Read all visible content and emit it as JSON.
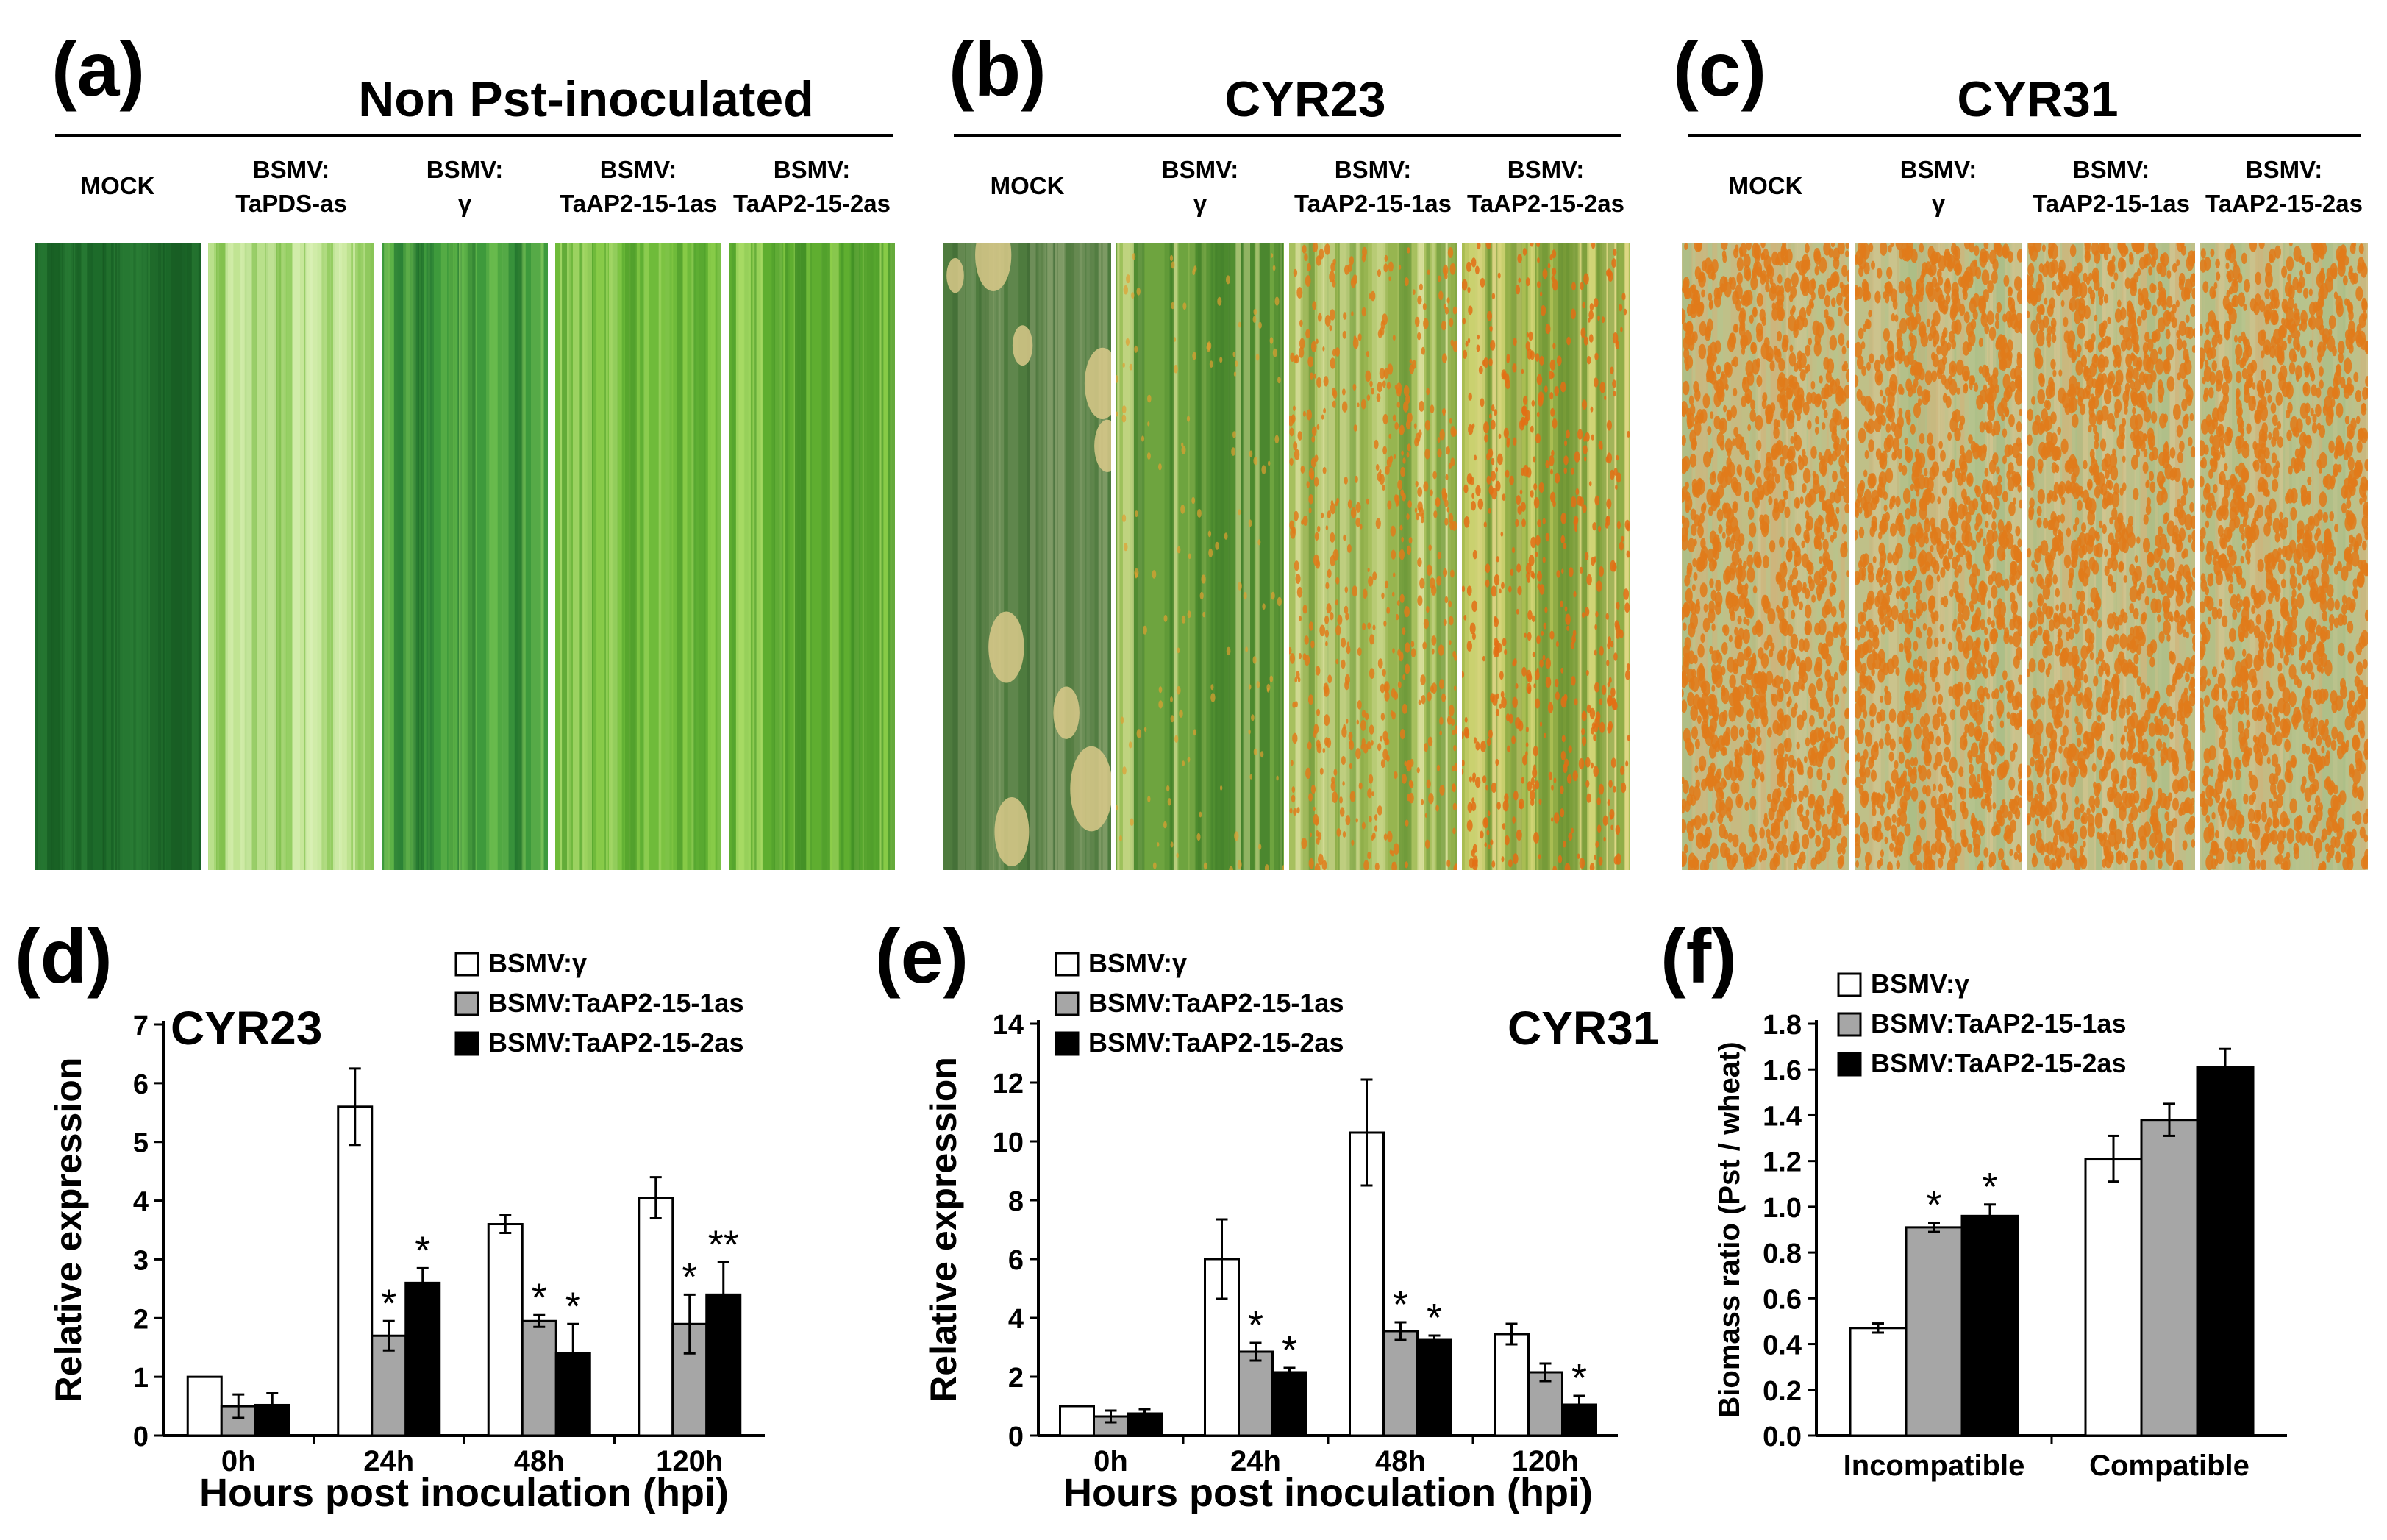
{
  "panels_top": [
    {
      "letter": "(a)",
      "title": "Non Pst-inoculated",
      "leaves": [
        {
          "label": [
            "MOCK"
          ],
          "style": "mock_a"
        },
        {
          "label": [
            "BSMV:",
            "TaPDS-as"
          ],
          "style": "pds"
        },
        {
          "label": [
            "BSMV:",
            "γ"
          ],
          "style": "gamma_a"
        },
        {
          "label": [
            "BSMV:",
            "TaAP2-15-1as"
          ],
          "style": "kd1_a"
        },
        {
          "label": [
            "BSMV:",
            "TaAP2-15-2as"
          ],
          "style": "kd2_a"
        }
      ]
    },
    {
      "letter": "(b)",
      "title": "CYR23",
      "leaves": [
        {
          "label": [
            "MOCK"
          ],
          "style": "mock_b"
        },
        {
          "label": [
            "BSMV:",
            "γ"
          ],
          "style": "gamma_b"
        },
        {
          "label": [
            "BSMV:",
            "TaAP2-15-1as"
          ],
          "style": "kd1_b"
        },
        {
          "label": [
            "BSMV:",
            "TaAP2-15-2as"
          ],
          "style": "kd2_b"
        }
      ]
    },
    {
      "letter": "(c)",
      "title": "CYR31",
      "leaves": [
        {
          "label": [
            "MOCK"
          ],
          "style": "rust"
        },
        {
          "label": [
            "BSMV:",
            "γ"
          ],
          "style": "rust"
        },
        {
          "label": [
            "BSMV:",
            "TaAP2-15-1as"
          ],
          "style": "rust"
        },
        {
          "label": [
            "BSMV:",
            "TaAP2-15-2as"
          ],
          "style": "rust"
        }
      ]
    }
  ],
  "colors": {
    "series": [
      "#ffffff",
      "#a6a6a6",
      "#000000"
    ],
    "stroke": "#000000",
    "leaf_dark": "#1f6e2a",
    "leaf_light": "#9fd468",
    "rust_orange": "#e07b1a"
  },
  "chart_data": [
    {
      "panel": "(d)",
      "type": "bar",
      "inset_title": "CYR23",
      "categories": [
        "0h",
        "24h",
        "48h",
        "120h"
      ],
      "series": [
        {
          "name": "BSMV:γ",
          "values": [
            1.0,
            5.6,
            3.6,
            4.05
          ],
          "errors": [
            0,
            0.65,
            0.15,
            0.35
          ]
        },
        {
          "name": "BSMV:TaAP2-15-1as",
          "values": [
            0.5,
            1.7,
            1.95,
            1.9
          ],
          "errors": [
            0.2,
            0.25,
            0.1,
            0.5
          ]
        },
        {
          "name": "BSMV:TaAP2-15-2as",
          "values": [
            0.52,
            2.6,
            1.4,
            2.4
          ],
          "errors": [
            0.2,
            0.25,
            0.5,
            0.55
          ]
        }
      ],
      "significance": [
        {
          "category": 1,
          "series": 1,
          "text": "*"
        },
        {
          "category": 1,
          "series": 2,
          "text": "*"
        },
        {
          "category": 2,
          "series": 1,
          "text": "*"
        },
        {
          "category": 2,
          "series": 2,
          "text": "*"
        },
        {
          "category": 3,
          "series": 1,
          "text": "*"
        },
        {
          "category": 3,
          "series": 2,
          "text": "**"
        }
      ],
      "ylabel": "Relative expression",
      "xlabel": "Hours post inoculation (hpi)",
      "ylim": [
        0,
        7
      ],
      "yticks": [
        0,
        1,
        2,
        3,
        4,
        5,
        6,
        7
      ],
      "legend_position": "top-right"
    },
    {
      "panel": "(e)",
      "type": "bar",
      "inset_title": "CYR31",
      "categories": [
        "0h",
        "24h",
        "48h",
        "120h"
      ],
      "series": [
        {
          "name": "BSMV:γ",
          "values": [
            1.0,
            6.0,
            10.3,
            3.45
          ],
          "errors": [
            0,
            1.35,
            1.8,
            0.35
          ]
        },
        {
          "name": "BSMV:TaAP2-15-1as",
          "values": [
            0.65,
            2.85,
            3.55,
            2.15
          ],
          "errors": [
            0.2,
            0.3,
            0.3,
            0.3
          ]
        },
        {
          "name": "BSMV:TaAP2-15-2as",
          "values": [
            0.75,
            2.15,
            3.25,
            1.05
          ],
          "errors": [
            0.15,
            0.15,
            0.15,
            0.3
          ]
        }
      ],
      "significance": [
        {
          "category": 1,
          "series": 1,
          "text": "*"
        },
        {
          "category": 1,
          "series": 2,
          "text": "*"
        },
        {
          "category": 2,
          "series": 1,
          "text": "*"
        },
        {
          "category": 2,
          "series": 2,
          "text": "*"
        },
        {
          "category": 3,
          "series": 2,
          "text": "*"
        }
      ],
      "ylabel": "Relative expression",
      "xlabel": "Hours post inoculation (hpi)",
      "ylim": [
        0,
        14
      ],
      "yticks": [
        0,
        2,
        4,
        6,
        8,
        10,
        12,
        14
      ],
      "legend_position": "top-left"
    },
    {
      "panel": "(f)",
      "type": "bar",
      "inset_title": "",
      "categories": [
        "Incompatible",
        "Compatible"
      ],
      "series": [
        {
          "name": "BSMV:γ",
          "values": [
            0.47,
            1.21
          ],
          "errors": [
            0.02,
            0.1
          ]
        },
        {
          "name": "BSMV:TaAP2-15-1as",
          "values": [
            0.91,
            1.38
          ],
          "errors": [
            0.02,
            0.07
          ]
        },
        {
          "name": "BSMV:TaAP2-15-2as",
          "values": [
            0.96,
            1.61
          ],
          "errors": [
            0.05,
            0.08
          ]
        }
      ],
      "significance": [
        {
          "category": 0,
          "series": 1,
          "text": "*"
        },
        {
          "category": 0,
          "series": 2,
          "text": "*"
        }
      ],
      "ylabel": "Biomass ratio (Pst / wheat)",
      "xlabel": "",
      "ylim": [
        0,
        1.8
      ],
      "yticks": [
        "0.0",
        "0.2",
        "0.4",
        "0.6",
        "0.8",
        "1.0",
        "1.2",
        "1.4",
        "1.6",
        "1.8"
      ],
      "legend_position": "top-left"
    }
  ]
}
